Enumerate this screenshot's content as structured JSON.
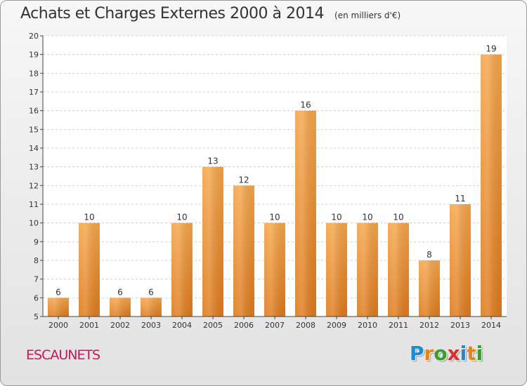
{
  "header": {
    "title": "Achats et Charges Externes 2000 à 2014",
    "subtitle": "(en milliers d'€)"
  },
  "footer": {
    "place": "ESCAUNETS",
    "logo": "Proxiti",
    "logo_letters": [
      "P",
      "r",
      "o",
      "x",
      "i",
      "t",
      "i"
    ]
  },
  "chart_data": {
    "type": "bar",
    "title": "Achats et Charges Externes 2000 à 2014",
    "subtitle": "(en milliers d'€)",
    "categories": [
      "2000",
      "2001",
      "2002",
      "2003",
      "2004",
      "2005",
      "2006",
      "2007",
      "2008",
      "2009",
      "2010",
      "2011",
      "2012",
      "2013",
      "2014"
    ],
    "values": [
      6,
      10,
      6,
      6,
      10,
      13,
      12,
      10,
      16,
      10,
      10,
      10,
      8,
      11,
      19
    ],
    "ylim": [
      5,
      20
    ],
    "yticks": [
      5,
      6,
      7,
      8,
      9,
      10,
      11,
      12,
      13,
      14,
      15,
      16,
      17,
      18,
      19,
      20
    ],
    "grid": true,
    "bar_color_light": "#f5a54a",
    "bar_color_dark": "#de7a1c"
  }
}
